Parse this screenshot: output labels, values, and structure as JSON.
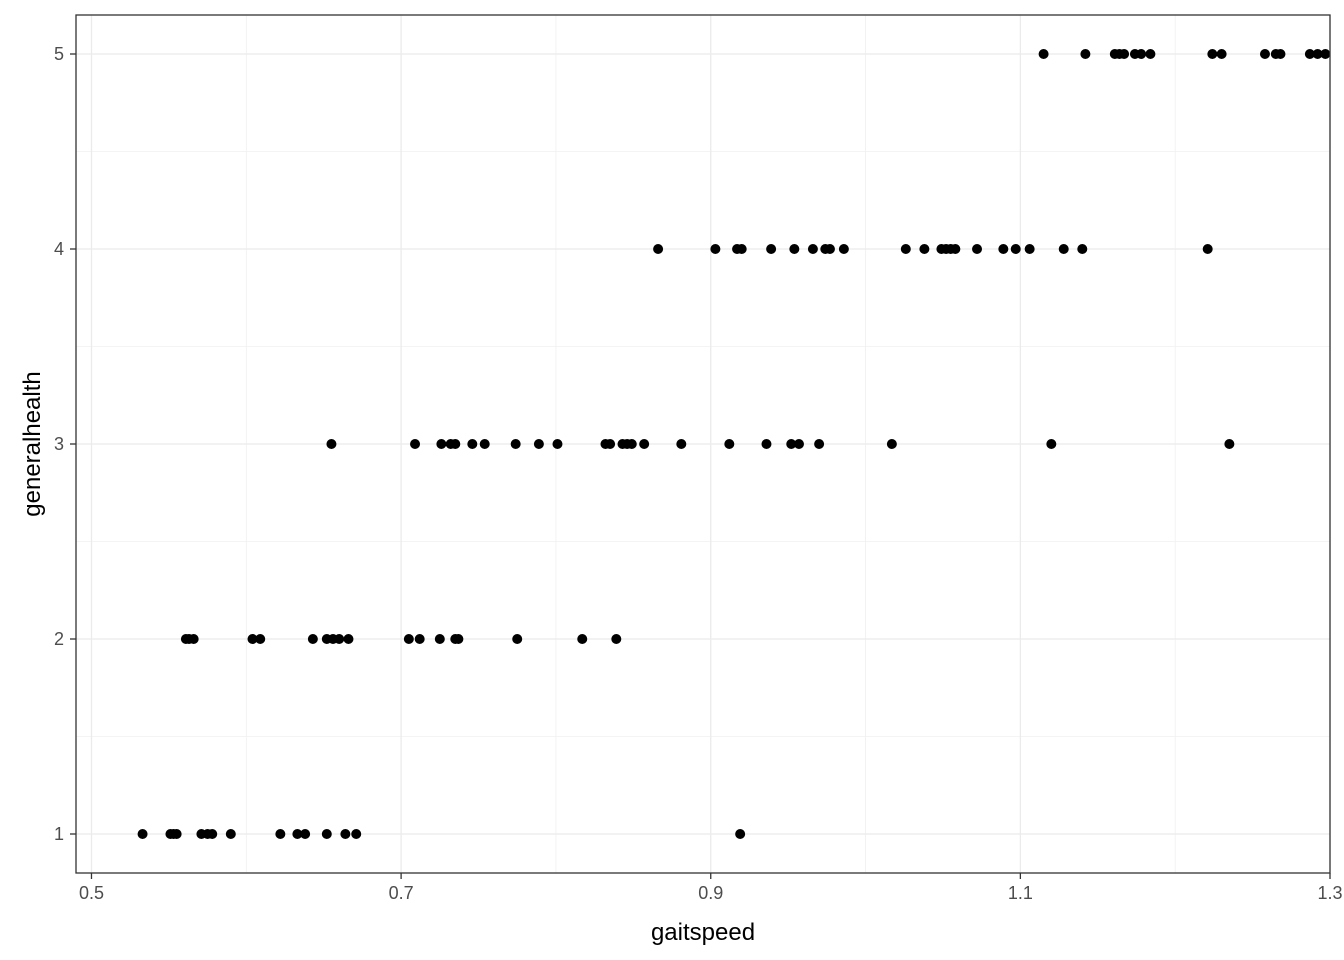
{
  "chart_data": {
    "type": "scatter",
    "title": "",
    "xlabel": "gaitspeed",
    "ylabel": "generalhealth",
    "xlim": [
      0.49,
      1.3
    ],
    "ylim": [
      0.8,
      5.2
    ],
    "x_ticks": [
      0.5,
      0.7,
      0.9,
      1.1,
      1.3
    ],
    "x_tick_labels": [
      "0.5",
      "0.7",
      "0.9",
      "1.1",
      "1.3"
    ],
    "y_ticks": [
      1,
      2,
      3,
      4,
      5
    ],
    "y_tick_labels": [
      "1",
      "2",
      "3",
      "4",
      "5"
    ],
    "grid": true,
    "point_color": "#000000",
    "points": [
      {
        "x": 0.533,
        "y": 1
      },
      {
        "x": 0.551,
        "y": 1
      },
      {
        "x": 0.553,
        "y": 1
      },
      {
        "x": 0.555,
        "y": 1
      },
      {
        "x": 0.571,
        "y": 1
      },
      {
        "x": 0.575,
        "y": 1
      },
      {
        "x": 0.578,
        "y": 1
      },
      {
        "x": 0.59,
        "y": 1
      },
      {
        "x": 0.622,
        "y": 1
      },
      {
        "x": 0.633,
        "y": 1
      },
      {
        "x": 0.638,
        "y": 1
      },
      {
        "x": 0.652,
        "y": 1
      },
      {
        "x": 0.664,
        "y": 1
      },
      {
        "x": 0.671,
        "y": 1
      },
      {
        "x": 0.919,
        "y": 1
      },
      {
        "x": 0.561,
        "y": 2
      },
      {
        "x": 0.563,
        "y": 2
      },
      {
        "x": 0.566,
        "y": 2
      },
      {
        "x": 0.604,
        "y": 2
      },
      {
        "x": 0.609,
        "y": 2
      },
      {
        "x": 0.643,
        "y": 2
      },
      {
        "x": 0.652,
        "y": 2
      },
      {
        "x": 0.656,
        "y": 2
      },
      {
        "x": 0.66,
        "y": 2
      },
      {
        "x": 0.666,
        "y": 2
      },
      {
        "x": 0.705,
        "y": 2
      },
      {
        "x": 0.712,
        "y": 2
      },
      {
        "x": 0.725,
        "y": 2
      },
      {
        "x": 0.735,
        "y": 2
      },
      {
        "x": 0.737,
        "y": 2
      },
      {
        "x": 0.775,
        "y": 2
      },
      {
        "x": 0.817,
        "y": 2
      },
      {
        "x": 0.839,
        "y": 2
      },
      {
        "x": 0.655,
        "y": 3
      },
      {
        "x": 0.709,
        "y": 3
      },
      {
        "x": 0.726,
        "y": 3
      },
      {
        "x": 0.732,
        "y": 3
      },
      {
        "x": 0.735,
        "y": 3
      },
      {
        "x": 0.746,
        "y": 3
      },
      {
        "x": 0.754,
        "y": 3
      },
      {
        "x": 0.774,
        "y": 3
      },
      {
        "x": 0.789,
        "y": 3
      },
      {
        "x": 0.801,
        "y": 3
      },
      {
        "x": 0.832,
        "y": 3
      },
      {
        "x": 0.835,
        "y": 3
      },
      {
        "x": 0.843,
        "y": 3
      },
      {
        "x": 0.846,
        "y": 3
      },
      {
        "x": 0.849,
        "y": 3
      },
      {
        "x": 0.857,
        "y": 3
      },
      {
        "x": 0.881,
        "y": 3
      },
      {
        "x": 0.912,
        "y": 3
      },
      {
        "x": 0.936,
        "y": 3
      },
      {
        "x": 0.952,
        "y": 3
      },
      {
        "x": 0.957,
        "y": 3
      },
      {
        "x": 0.97,
        "y": 3
      },
      {
        "x": 1.017,
        "y": 3
      },
      {
        "x": 1.12,
        "y": 3
      },
      {
        "x": 1.235,
        "y": 3
      },
      {
        "x": 0.866,
        "y": 4
      },
      {
        "x": 0.903,
        "y": 4
      },
      {
        "x": 0.917,
        "y": 4
      },
      {
        "x": 0.92,
        "y": 4
      },
      {
        "x": 0.939,
        "y": 4
      },
      {
        "x": 0.954,
        "y": 4
      },
      {
        "x": 0.966,
        "y": 4
      },
      {
        "x": 0.974,
        "y": 4
      },
      {
        "x": 0.977,
        "y": 4
      },
      {
        "x": 0.986,
        "y": 4
      },
      {
        "x": 1.026,
        "y": 4
      },
      {
        "x": 1.038,
        "y": 4
      },
      {
        "x": 1.049,
        "y": 4
      },
      {
        "x": 1.052,
        "y": 4
      },
      {
        "x": 1.055,
        "y": 4
      },
      {
        "x": 1.058,
        "y": 4
      },
      {
        "x": 1.072,
        "y": 4
      },
      {
        "x": 1.089,
        "y": 4
      },
      {
        "x": 1.097,
        "y": 4
      },
      {
        "x": 1.106,
        "y": 4
      },
      {
        "x": 1.128,
        "y": 4
      },
      {
        "x": 1.14,
        "y": 4
      },
      {
        "x": 1.221,
        "y": 4
      },
      {
        "x": 1.115,
        "y": 5
      },
      {
        "x": 1.142,
        "y": 5
      },
      {
        "x": 1.161,
        "y": 5
      },
      {
        "x": 1.164,
        "y": 5
      },
      {
        "x": 1.167,
        "y": 5
      },
      {
        "x": 1.174,
        "y": 5
      },
      {
        "x": 1.178,
        "y": 5
      },
      {
        "x": 1.184,
        "y": 5
      },
      {
        "x": 1.224,
        "y": 5
      },
      {
        "x": 1.23,
        "y": 5
      },
      {
        "x": 1.258,
        "y": 5
      },
      {
        "x": 1.265,
        "y": 5
      },
      {
        "x": 1.268,
        "y": 5
      },
      {
        "x": 1.287,
        "y": 5
      },
      {
        "x": 1.292,
        "y": 5
      },
      {
        "x": 1.297,
        "y": 5
      }
    ]
  }
}
